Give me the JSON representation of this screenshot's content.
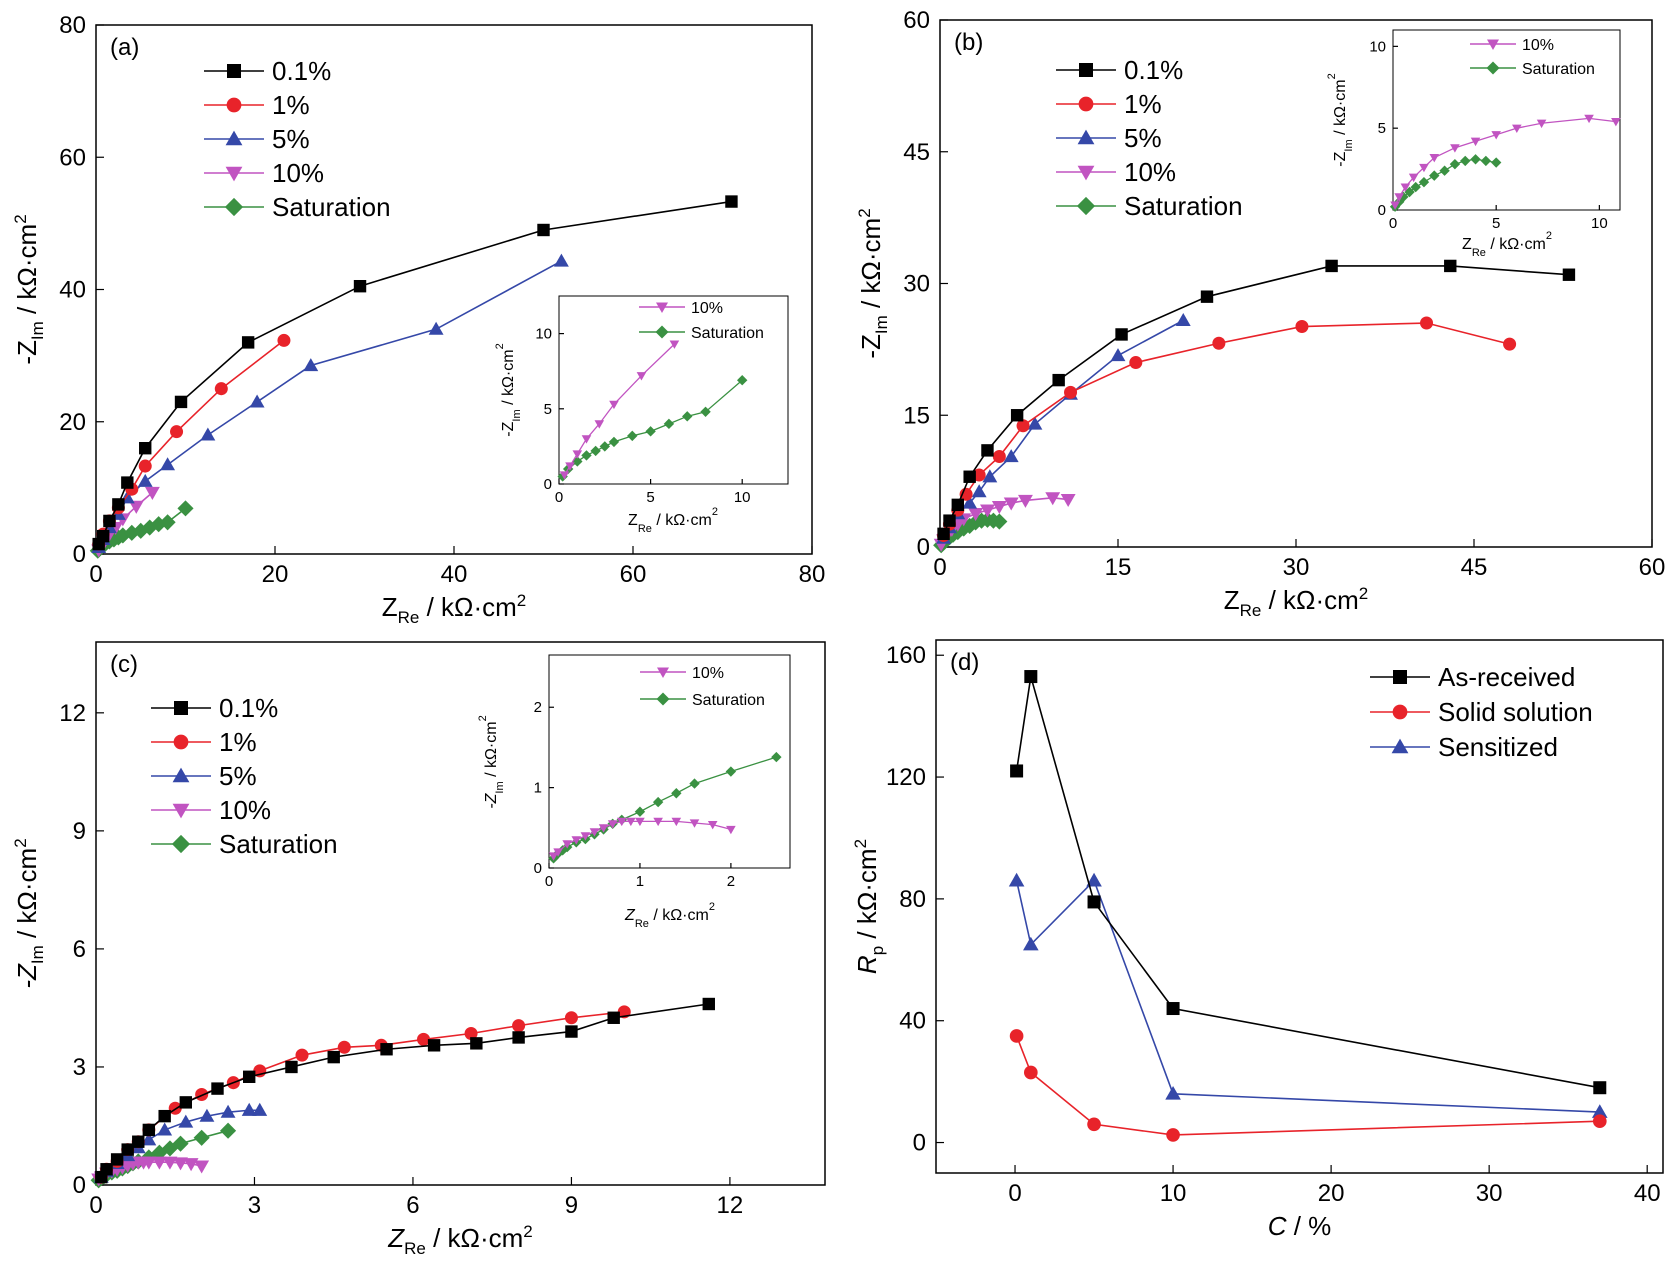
{
  "figure": {
    "colors": {
      "c01": "#000000",
      "c1": "#e8232a",
      "c5": "#3548a8",
      "c10": "#c154c1",
      "csat": "#3a9142"
    }
  },
  "chart_data": [
    {
      "id": "a",
      "panel_label": "(a)",
      "type": "scatter",
      "xlabel_main": "Z",
      "xlabel_sub": "Re",
      "xlabel_unit": " / kΩ·cm",
      "xlabel_sup": "2",
      "ylabel_pre": "-Z",
      "ylabel_sub": "Im",
      "ylabel_unit": " / kΩ·cm",
      "ylabel_sup": "2",
      "xlim": [
        0,
        80
      ],
      "ylim": [
        0,
        80
      ],
      "xticks": [
        "0",
        "20",
        "40",
        "60",
        "80"
      ],
      "yticks": [
        "0",
        "20",
        "40",
        "60",
        "80"
      ],
      "series": [
        {
          "name": "0.1%",
          "marker": "square",
          "color": "#000000",
          "x": [
            0.3,
            0.8,
            1.5,
            2.5,
            3.5,
            5.5,
            9.5,
            17,
            29.5,
            50,
            71
          ],
          "y": [
            1.5,
            2.7,
            5,
            7.5,
            10.8,
            16,
            23,
            32,
            40.5,
            49,
            53.3
          ]
        },
        {
          "name": "1%",
          "marker": "circle",
          "color": "#e8232a",
          "x": [
            0.3,
            0.8,
            1.5,
            2.5,
            4,
            5.5,
            9,
            14,
            21
          ],
          "y": [
            1.5,
            3,
            5,
            7,
            9.8,
            13.3,
            18.5,
            25,
            32.3
          ]
        },
        {
          "name": "5%",
          "marker": "triangle-up",
          "color": "#3548a8",
          "x": [
            0.3,
            0.8,
            1.5,
            2.5,
            3.5,
            5.5,
            8,
            12.5,
            18,
            24,
            38,
            52
          ],
          "y": [
            1,
            2.2,
            4,
            6,
            8.5,
            11,
            13.5,
            18,
            23,
            28.5,
            34,
            44.3
          ]
        },
        {
          "name": "10%",
          "marker": "triangle-down",
          "color": "#c154c1",
          "x": [
            0.3,
            0.6,
            1,
            1.5,
            2.2,
            3,
            4.5,
            6.3
          ],
          "y": [
            0.6,
            1.2,
            2,
            3,
            4,
            5.3,
            7.2,
            9.3
          ]
        },
        {
          "name": "Saturation",
          "marker": "diamond",
          "color": "#3a9142",
          "x": [
            0.2,
            0.5,
            1,
            1.5,
            2,
            2.5,
            3,
            4,
            5,
            6,
            7,
            8,
            10
          ],
          "y": [
            0.5,
            1,
            1.5,
            1.9,
            2.2,
            2.5,
            2.8,
            3.2,
            3.5,
            4,
            4.5,
            4.8,
            6.9
          ]
        }
      ],
      "inset": {
        "xlabel_main": "Z",
        "xlabel_sub": "Re",
        "xlabel_unit": " / kΩ·cm",
        "xlabel_sup": "2",
        "ylabel_pre": "-Z",
        "ylabel_sub": "Im",
        "ylabel_unit": " / kΩ·cm",
        "ylabel_sup": "2",
        "xlim": [
          0,
          12.5
        ],
        "ylim": [
          0,
          12.5
        ],
        "xticks": [
          "0",
          "5",
          "10"
        ],
        "yticks": [
          "0",
          "5",
          "10"
        ],
        "series_refs": [
          3,
          4
        ]
      }
    },
    {
      "id": "b",
      "panel_label": "(b)",
      "type": "scatter",
      "xlabel_main": "Z",
      "xlabel_sub": "Re",
      "xlabel_unit": " / kΩ·cm",
      "xlabel_sup": "2",
      "ylabel_pre": "-Z",
      "ylabel_sub": "Im",
      "ylabel_unit": " / kΩ·cm",
      "ylabel_sup": "2",
      "xlim": [
        0,
        60
      ],
      "ylim": [
        0,
        60
      ],
      "xticks": [
        "0",
        "15",
        "30",
        "45",
        "60"
      ],
      "yticks": [
        "0",
        "15",
        "30",
        "45",
        "60"
      ],
      "series": [
        {
          "name": "0.1%",
          "marker": "square",
          "color": "#000000",
          "x": [
            0.3,
            0.8,
            1.5,
            2.5,
            4,
            6.5,
            10,
            15.3,
            22.5,
            33,
            43,
            53
          ],
          "y": [
            1.5,
            3,
            4.8,
            8,
            11,
            15,
            19,
            24.2,
            28.5,
            32,
            32,
            31
          ]
        },
        {
          "name": "1%",
          "marker": "circle",
          "color": "#e8232a",
          "x": [
            0.3,
            0.8,
            1.5,
            2.2,
            3.3,
            5,
            7,
            11,
            16.5,
            23.5,
            30.5,
            41,
            48
          ],
          "y": [
            1.3,
            2.6,
            4.2,
            6,
            8.2,
            10.3,
            13.8,
            17.6,
            21,
            23.2,
            25.1,
            25.5,
            23.1
          ]
        },
        {
          "name": "5%",
          "marker": "triangle-up",
          "color": "#3548a8",
          "x": [
            0.3,
            0.8,
            1.5,
            2.5,
            3.3,
            4.2,
            6,
            8,
            11,
            15,
            20.5
          ],
          "y": [
            1,
            2.2,
            3.8,
            5,
            6.3,
            8,
            10.3,
            14,
            17.4,
            21.8,
            25.8
          ]
        },
        {
          "name": "10%",
          "marker": "triangle-down",
          "color": "#c154c1",
          "x": [
            0.1,
            0.3,
            0.6,
            1,
            1.5,
            2,
            3,
            4,
            5,
            6,
            7.2,
            9.5,
            10.8
          ],
          "y": [
            0.3,
            0.8,
            1.4,
            2,
            2.6,
            3.2,
            3.8,
            4.2,
            4.6,
            5,
            5.3,
            5.6,
            5.4
          ]
        },
        {
          "name": "Saturation",
          "marker": "diamond",
          "color": "#3a9142",
          "x": [
            0.1,
            0.3,
            0.5,
            0.8,
            1.1,
            1.5,
            2,
            2.5,
            3,
            3.5,
            4,
            4.5,
            5
          ],
          "y": [
            0.2,
            0.5,
            0.8,
            1.1,
            1.4,
            1.7,
            2.1,
            2.4,
            2.8,
            3,
            3.1,
            3,
            2.9
          ]
        }
      ],
      "inset": {
        "xlabel_main": "Z",
        "xlabel_sub": "Re",
        "xlabel_unit": " / kΩ·cm",
        "xlabel_sup": "2",
        "ylabel_pre": "-Z",
        "ylabel_sub": "Im",
        "ylabel_unit": " / kΩ·cm",
        "ylabel_sup": "2",
        "xlim": [
          0,
          11
        ],
        "ylim": [
          0,
          11
        ],
        "xticks": [
          "0",
          "5",
          "10"
        ],
        "yticks": [
          "0",
          "5",
          "10"
        ],
        "series_refs": [
          3,
          4
        ]
      }
    },
    {
      "id": "c",
      "panel_label": "(c)",
      "type": "scatter",
      "xlabel_main": "Z",
      "xlabel_sub": "Re",
      "xlabel_unit": " / kΩ·cm",
      "xlabel_sup": "2",
      "ylabel_pre": "-Z",
      "ylabel_sub": "Im",
      "ylabel_unit": " / kΩ·cm",
      "ylabel_sup": "2",
      "xlim": [
        0,
        13.8
      ],
      "ylim": [
        0,
        13.8
      ],
      "xticks": [
        "0",
        "3",
        "6",
        "9",
        "12"
      ],
      "yticks": [
        "0",
        "3",
        "6",
        "9",
        "12"
      ],
      "series": [
        {
          "name": "0.1%",
          "marker": "square",
          "color": "#000000",
          "x": [
            0.1,
            0.2,
            0.4,
            0.6,
            0.8,
            1,
            1.3,
            1.7,
            2.3,
            2.9,
            3.7,
            4.5,
            5.5,
            6.4,
            7.2,
            8,
            9,
            9.8,
            11.6
          ],
          "y": [
            0.2,
            0.4,
            0.65,
            0.9,
            1.1,
            1.4,
            1.75,
            2.1,
            2.45,
            2.75,
            3,
            3.25,
            3.45,
            3.55,
            3.6,
            3.75,
            3.9,
            4.25,
            4.6
          ]
        },
        {
          "name": "1%",
          "marker": "circle",
          "color": "#e8232a",
          "x": [
            0.1,
            0.2,
            0.4,
            0.6,
            0.8,
            1,
            1.5,
            2,
            2.6,
            3.1,
            3.9,
            4.7,
            5.4,
            6.2,
            7.1,
            8,
            9,
            10
          ],
          "y": [
            0.2,
            0.4,
            0.6,
            0.9,
            1.1,
            1.4,
            1.95,
            2.3,
            2.6,
            2.9,
            3.3,
            3.5,
            3.55,
            3.7,
            3.85,
            4.05,
            4.25,
            4.4
          ]
        },
        {
          "name": "5%",
          "marker": "triangle-up",
          "color": "#3548a8",
          "x": [
            0.1,
            0.2,
            0.4,
            0.6,
            0.8,
            1,
            1.3,
            1.7,
            2.1,
            2.5,
            2.9,
            3.1
          ],
          "y": [
            0.2,
            0.35,
            0.55,
            0.75,
            0.95,
            1.15,
            1.4,
            1.6,
            1.75,
            1.85,
            1.9,
            1.9
          ]
        },
        {
          "name": "10%",
          "marker": "triangle-down",
          "color": "#c154c1",
          "x": [
            0.05,
            0.1,
            0.2,
            0.3,
            0.4,
            0.5,
            0.6,
            0.7,
            0.8,
            0.9,
            1,
            1.2,
            1.4,
            1.6,
            1.8,
            2
          ],
          "y": [
            0.15,
            0.2,
            0.3,
            0.35,
            0.4,
            0.45,
            0.5,
            0.55,
            0.58,
            0.58,
            0.58,
            0.58,
            0.58,
            0.56,
            0.54,
            0.48
          ]
        },
        {
          "name": "Saturation",
          "marker": "diamond",
          "color": "#3a9142",
          "x": [
            0.05,
            0.1,
            0.15,
            0.2,
            0.3,
            0.4,
            0.5,
            0.6,
            0.7,
            0.8,
            1,
            1.2,
            1.4,
            1.6,
            2,
            2.5
          ],
          "y": [
            0.12,
            0.18,
            0.22,
            0.26,
            0.32,
            0.36,
            0.42,
            0.48,
            0.55,
            0.6,
            0.7,
            0.82,
            0.93,
            1.05,
            1.2,
            1.38
          ]
        }
      ],
      "inset": {
        "xlabel_main": "Z",
        "xlabel_sub": "Re",
        "xlabel_unit": " / kΩ·cm",
        "xlabel_sup": "2",
        "ylabel_pre": "-Z",
        "ylabel_sub": "Im",
        "ylabel_unit": " / kΩ·cm",
        "ylabel_sup": "2",
        "xlim": [
          0,
          2.65
        ],
        "ylim": [
          0,
          2.65
        ],
        "xticks": [
          "0",
          "1",
          "2"
        ],
        "yticks": [
          "0",
          "1",
          "2"
        ],
        "series_refs": [
          3,
          4
        ]
      }
    },
    {
      "id": "d",
      "panel_label": "(d)",
      "type": "line",
      "xlabel_main": "C",
      "xlabel_unit": " / %",
      "ylabel_main": "R",
      "ylabel_sub": "p",
      "ylabel_unit": " / kΩ·cm",
      "ylabel_sup": "2",
      "xlim": [
        -5,
        41
      ],
      "ylim": [
        -10,
        165
      ],
      "xticks": [
        "0",
        "10",
        "20",
        "30",
        "40"
      ],
      "yticks": [
        "0",
        "40",
        "80",
        "120",
        "160"
      ],
      "series": [
        {
          "name": "As-received",
          "marker": "square",
          "color": "#000000",
          "x": [
            0.1,
            1,
            5,
            10,
            37
          ],
          "y": [
            122,
            153,
            79,
            44,
            18
          ]
        },
        {
          "name": "Solid solution",
          "marker": "circle",
          "color": "#e8232a",
          "x": [
            0.1,
            1,
            5,
            10,
            37
          ],
          "y": [
            35,
            23,
            6,
            2.5,
            7
          ]
        },
        {
          "name": "Sensitized",
          "marker": "triangle-up",
          "color": "#3548a8",
          "x": [
            0.1,
            1,
            5,
            10,
            37
          ],
          "y": [
            86,
            65,
            86,
            16,
            10
          ]
        }
      ]
    }
  ]
}
